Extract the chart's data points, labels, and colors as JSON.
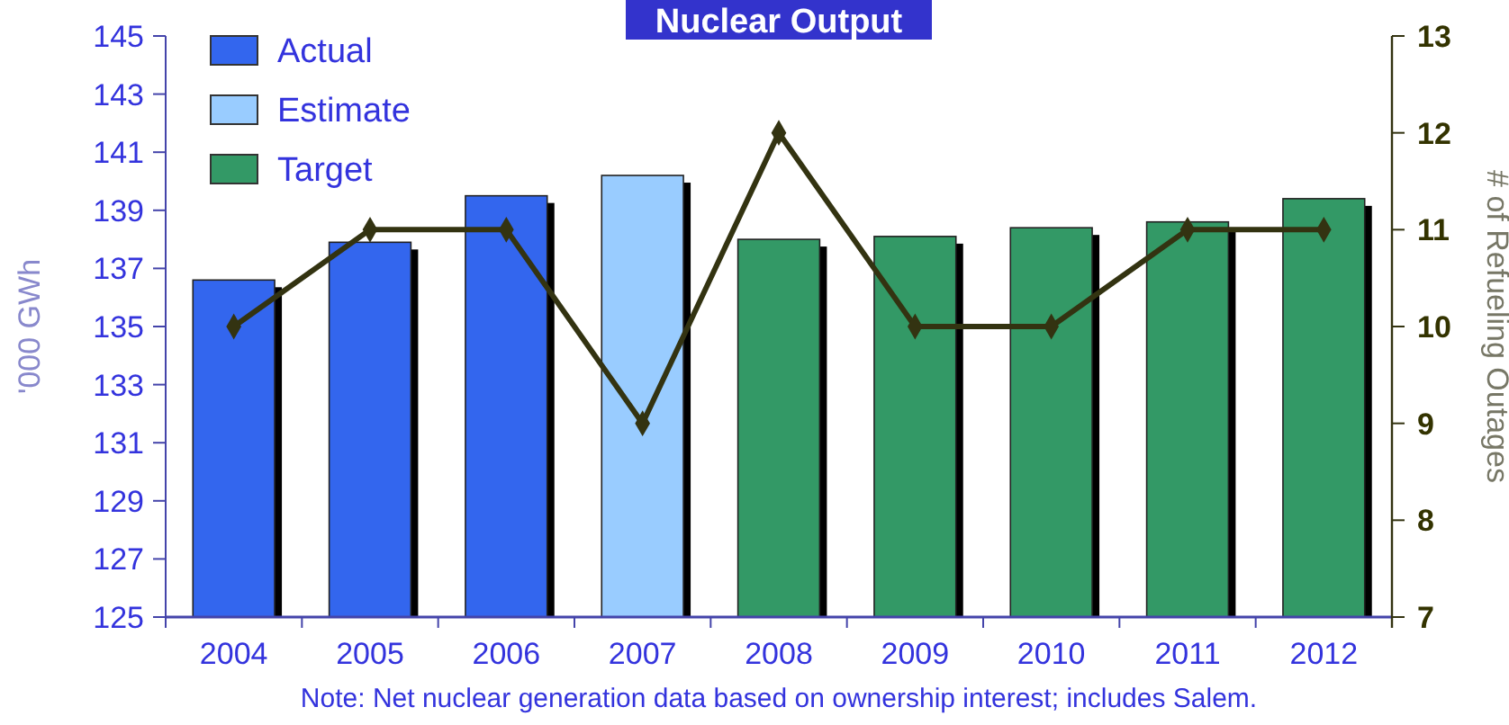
{
  "chart_data": {
    "type": "bar",
    "title": "Nuclear Output",
    "ylabel": "'000 GWh",
    "y2label": "# of Refueling Outages",
    "annotations": [
      "Note:  Net nuclear generation data based on ownership interest; includes Salem."
    ],
    "categories": [
      "2004",
      "2005",
      "2006",
      "2007",
      "2008",
      "2009",
      "2010",
      "2011",
      "2012"
    ],
    "series": [
      {
        "name": "Actual",
        "color": "#3366ee",
        "values": [
          136.6,
          137.9,
          139.5,
          null,
          null,
          null,
          null,
          null,
          null
        ]
      },
      {
        "name": "Estimate",
        "color": "#99ccff",
        "values": [
          null,
          null,
          null,
          140.2,
          null,
          null,
          null,
          null,
          null
        ]
      },
      {
        "name": "Target",
        "color": "#339966",
        "values": [
          null,
          null,
          null,
          null,
          138.0,
          138.1,
          138.4,
          138.6,
          139.4
        ]
      },
      {
        "type": "line",
        "axis": "y2",
        "color": "#333311",
        "marker": "diamond",
        "values": [
          10,
          11,
          11,
          9,
          12,
          10,
          10,
          11,
          11
        ]
      }
    ],
    "ylim": [
      125,
      145
    ],
    "yticks": [
      125,
      127,
      129,
      131,
      133,
      135,
      137,
      139,
      141,
      143,
      145
    ],
    "y2lim": [
      7,
      13
    ],
    "y2ticks": [
      7,
      8,
      9,
      10,
      11,
      12,
      13
    ],
    "legend": "top left",
    "grid": false
  }
}
